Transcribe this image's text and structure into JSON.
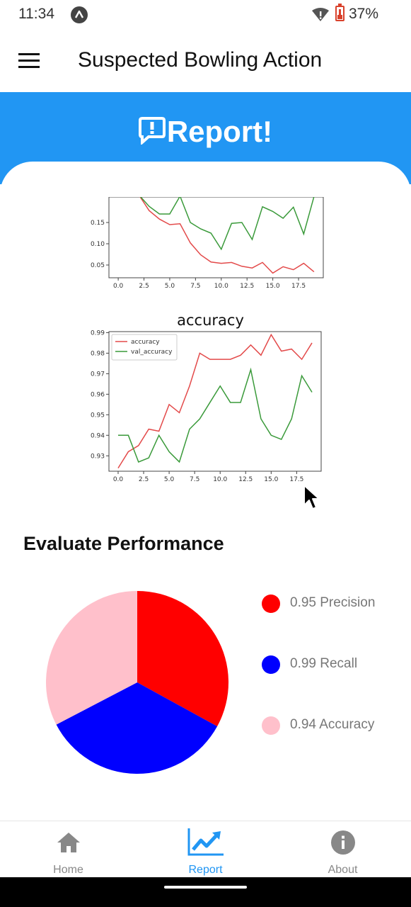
{
  "status_bar": {
    "time": "11:34",
    "battery": "37%"
  },
  "app_bar": {
    "title": "Suspected Bowling Action"
  },
  "banner": {
    "title": "Report!"
  },
  "chart_data": [
    {
      "type": "line",
      "title": "",
      "x": [
        2,
        3,
        4,
        5,
        6,
        7,
        8,
        9,
        10,
        11,
        12,
        13,
        14,
        15,
        16,
        17,
        18,
        19
      ],
      "xticks": [
        "0.0",
        "2.5",
        "5.0",
        "7.5",
        "10.0",
        "12.5",
        "15.0",
        "17.5"
      ],
      "yticks": [
        "0.05",
        "0.10",
        "0.15"
      ],
      "ylim": [
        0.02,
        0.21
      ],
      "xlim": [
        -0.9,
        19.9
      ],
      "series": [
        {
          "color": "#e34a4a",
          "values": [
            0.215,
            0.178,
            0.158,
            0.145,
            0.147,
            0.102,
            0.074,
            0.057,
            0.054,
            0.056,
            0.047,
            0.043,
            0.056,
            0.031,
            0.046,
            0.039,
            0.054,
            0.034
          ]
        },
        {
          "color": "#3a9a3a",
          "values": [
            0.215,
            0.188,
            0.17,
            0.17,
            0.212,
            0.15,
            0.135,
            0.125,
            0.087,
            0.148,
            0.15,
            0.11,
            0.187,
            0.176,
            0.16,
            0.186,
            0.123,
            0.211
          ]
        }
      ]
    },
    {
      "type": "line",
      "title": "accuracy",
      "x": [
        0,
        1,
        2,
        3,
        4,
        5,
        6,
        7,
        8,
        9,
        10,
        11,
        12,
        13,
        14,
        15,
        16,
        17,
        18,
        19
      ],
      "xticks": [
        "0.0",
        "2.5",
        "5.0",
        "7.5",
        "10.0",
        "12.5",
        "15.0",
        "17.5"
      ],
      "yticks": [
        "0.93",
        "0.94",
        "0.95",
        "0.96",
        "0.97",
        "0.98",
        "0.99"
      ],
      "ylim": [
        0.9225,
        0.9905
      ],
      "xlim": [
        -0.9,
        19.9
      ],
      "legend_position": "upper-left",
      "series": [
        {
          "name": "accuracy",
          "color": "#e34a4a",
          "values": [
            0.924,
            0.932,
            0.935,
            0.943,
            0.942,
            0.955,
            0.951,
            0.964,
            0.98,
            0.977,
            0.977,
            0.977,
            0.979,
            0.984,
            0.979,
            0.989,
            0.981,
            0.982,
            0.977,
            0.985
          ]
        },
        {
          "name": "val_accuracy",
          "color": "#3a9a3a",
          "values": [
            0.94,
            0.94,
            0.927,
            0.929,
            0.94,
            0.932,
            0.927,
            0.943,
            0.948,
            0.956,
            0.964,
            0.956,
            0.956,
            0.972,
            0.948,
            0.94,
            0.938,
            0.948,
            0.969,
            0.961
          ]
        }
      ]
    },
    {
      "type": "pie",
      "title": "",
      "slices": [
        {
          "label": "Precision",
          "value": 0.95,
          "color": "#ff0000"
        },
        {
          "label": "Recall",
          "value": 0.99,
          "color": "#0000ff"
        },
        {
          "label": "Accuracy",
          "value": 0.94,
          "color": "#ffc0cb"
        }
      ]
    }
  ],
  "evaluate": {
    "title": "Evaluate Performance",
    "legend": [
      {
        "text": "0.95 Precision",
        "color": "#ff0000"
      },
      {
        "text": "0.99 Recall",
        "color": "#0000ff"
      },
      {
        "text": "0.94 Accuracy",
        "color": "#ffc0cb"
      }
    ]
  },
  "bottom_nav": {
    "items": [
      {
        "label": "Home",
        "icon": "home-icon",
        "active": false
      },
      {
        "label": "Report",
        "icon": "trending-up-icon",
        "active": true
      },
      {
        "label": "About",
        "icon": "info-icon",
        "active": false
      }
    ],
    "active_color": "#2196f3",
    "inactive_color": "#888888"
  },
  "colors": {
    "accent": "#2196f3"
  }
}
